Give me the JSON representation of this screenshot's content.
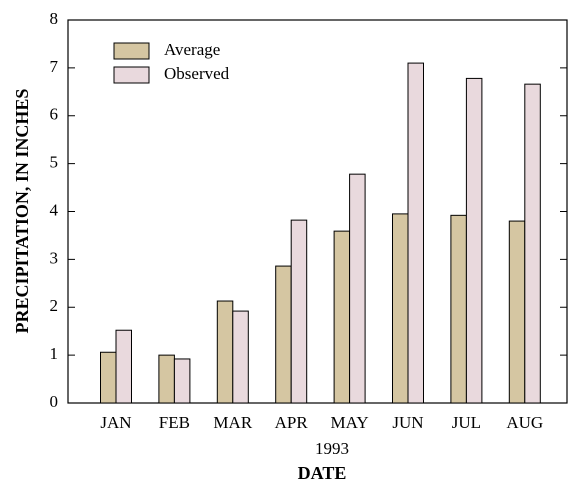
{
  "chart_data": {
    "type": "bar",
    "categories": [
      "JAN",
      "FEB",
      "MAR",
      "APR",
      "MAY",
      "JUN",
      "JUL",
      "AUG"
    ],
    "series": [
      {
        "name": "Average",
        "color": "#d5c6a2",
        "values": [
          1.06,
          1.0,
          2.13,
          2.86,
          3.59,
          3.95,
          3.92,
          3.8
        ]
      },
      {
        "name": "Observed",
        "color": "#e9d9dd",
        "values": [
          1.52,
          0.92,
          1.92,
          3.82,
          4.78,
          7.1,
          6.78,
          6.66
        ]
      }
    ],
    "x_note": "1993",
    "xlabel": "DATE",
    "ylabel": "PRECIPITATION, IN INCHES",
    "ylim": [
      0,
      8
    ],
    "yticks": [
      0,
      1,
      2,
      3,
      4,
      5,
      6,
      7,
      8
    ],
    "legend": "upper-left"
  }
}
